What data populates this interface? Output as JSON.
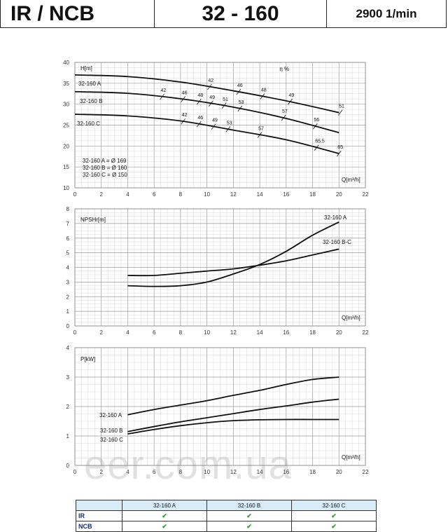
{
  "header": {
    "series": "IR / NCB",
    "model": "32 - 160",
    "speed": "2900 1/min"
  },
  "chart_data": [
    {
      "type": "line",
      "ylabel": "H[m]",
      "xlabel": "Q[m³/h]",
      "efficiency_label": "η %",
      "xlim": [
        0,
        22
      ],
      "ylim": [
        10,
        40
      ],
      "xticks": [
        0,
        2,
        4,
        6,
        8,
        10,
        12,
        14,
        16,
        18,
        20,
        22
      ],
      "yticks": [
        10,
        15,
        20,
        25,
        30,
        35,
        40
      ],
      "grid": true,
      "series": [
        {
          "name": "32-160 A",
          "x": [
            0,
            4,
            8,
            12,
            16,
            20
          ],
          "y": [
            37,
            36.6,
            35.3,
            33.2,
            30.8,
            28.0
          ]
        },
        {
          "name": "32-160 B",
          "x": [
            0,
            4,
            8,
            12,
            16,
            20
          ],
          "y": [
            33,
            32.6,
            31.3,
            29.3,
            26.6,
            23.2
          ]
        },
        {
          "name": "32-160 C",
          "x": [
            0,
            4,
            8,
            12,
            16,
            20
          ],
          "y": [
            27.6,
            27.2,
            26.0,
            23.8,
            21.5,
            18.2
          ]
        }
      ],
      "iso_efficiency_marks": [
        {
          "label": "42",
          "q": 6.6,
          "series": "32-160 B"
        },
        {
          "label": "46",
          "q": 8.2,
          "series": "32-160 B"
        },
        {
          "label": "48",
          "q": 9.4,
          "series": "32-160 B"
        },
        {
          "label": "49",
          "q": 10.3,
          "series": "32-160 B"
        },
        {
          "label": "51",
          "q": 11.3,
          "series": "32-160 B"
        },
        {
          "label": "53",
          "q": 12.5,
          "series": "32-160 B"
        },
        {
          "label": "42",
          "q": 10.2,
          "series": "32-160 A"
        },
        {
          "label": "46",
          "q": 12.4,
          "series": "32-160 A"
        },
        {
          "label": "48",
          "q": 14.2,
          "series": "32-160 A"
        },
        {
          "label": "49",
          "q": 16.3,
          "series": "32-160 A"
        },
        {
          "label": "51",
          "q": 20.1,
          "series": "32-160 A"
        },
        {
          "label": "42",
          "q": 8.2,
          "series": "32-160 C"
        },
        {
          "label": "46",
          "q": 9.4,
          "series": "32-160 C"
        },
        {
          "label": "49",
          "q": 10.5,
          "series": "32-160 C"
        },
        {
          "label": "53",
          "q": 11.6,
          "series": "32-160 C"
        },
        {
          "label": "57",
          "q": 14.0,
          "series": "32-160 C"
        },
        {
          "label": "57",
          "q": 15.8,
          "series": "32-160 B"
        },
        {
          "label": "56",
          "q": 18.2,
          "series": "32-160 B"
        },
        {
          "label": "65.5",
          "q": 18.3,
          "series": "32-160 C"
        },
        {
          "label": "65",
          "q": 20.0,
          "series": "32-160 C"
        }
      ],
      "notes": [
        "32-160 A = Ø 169",
        "32-160 B = Ø 160",
        "32-160 C = Ø 150"
      ]
    },
    {
      "type": "line",
      "ylabel": "NPSHr[m]",
      "xlabel": "Q[m³/h]",
      "xlim": [
        0,
        22
      ],
      "ylim": [
        0,
        8
      ],
      "xticks": [
        0,
        2,
        4,
        6,
        8,
        10,
        12,
        14,
        16,
        18,
        20,
        22
      ],
      "yticks": [
        0,
        1,
        2,
        3,
        4,
        5,
        6,
        7,
        8
      ],
      "grid": true,
      "series": [
        {
          "name": "32-160 A",
          "x": [
            4,
            6,
            8,
            10,
            12,
            14,
            16,
            18,
            20
          ],
          "y": [
            2.75,
            2.7,
            2.75,
            3.0,
            3.55,
            4.2,
            5.1,
            6.2,
            7.1
          ]
        },
        {
          "name": "32-160 B-C",
          "x": [
            4,
            6,
            8,
            10,
            12,
            14,
            16,
            18,
            20
          ],
          "y": [
            3.45,
            3.45,
            3.6,
            3.75,
            3.9,
            4.15,
            4.45,
            4.85,
            5.25
          ]
        }
      ]
    },
    {
      "type": "line",
      "ylabel": "P[kW]",
      "xlabel": "Q[m³/h]",
      "xlim": [
        0,
        22
      ],
      "ylim": [
        0,
        4
      ],
      "xticks": [
        0,
        2,
        4,
        6,
        8,
        10,
        12,
        14,
        16,
        18,
        20,
        22
      ],
      "yticks": [
        0,
        1,
        2,
        3,
        4
      ],
      "grid": true,
      "series": [
        {
          "name": "32-160 A",
          "x": [
            4,
            6,
            8,
            10,
            12,
            14,
            16,
            18,
            20
          ],
          "y": [
            1.72,
            1.9,
            2.05,
            2.2,
            2.38,
            2.55,
            2.75,
            2.92,
            3.0
          ]
        },
        {
          "name": "32-160 B",
          "x": [
            4,
            6,
            8,
            10,
            12,
            14,
            16,
            18,
            20
          ],
          "y": [
            1.15,
            1.32,
            1.48,
            1.62,
            1.76,
            1.9,
            2.02,
            2.15,
            2.25
          ]
        },
        {
          "name": "32-160 C",
          "x": [
            4,
            6,
            8,
            10,
            12,
            14,
            16,
            18,
            20
          ],
          "y": [
            1.07,
            1.22,
            1.35,
            1.45,
            1.52,
            1.55,
            1.56,
            1.56,
            1.56
          ]
        }
      ]
    }
  ],
  "watermark": "eer.com.ua",
  "table": {
    "columns": [
      "32-160 A",
      "32-160 B",
      "32-160 C"
    ],
    "rows": [
      {
        "label": "IR",
        "marks": [
          "✔",
          "✔",
          "✔"
        ]
      },
      {
        "label": "NCB",
        "marks": [
          "✔",
          "✔",
          "✔"
        ]
      }
    ]
  }
}
